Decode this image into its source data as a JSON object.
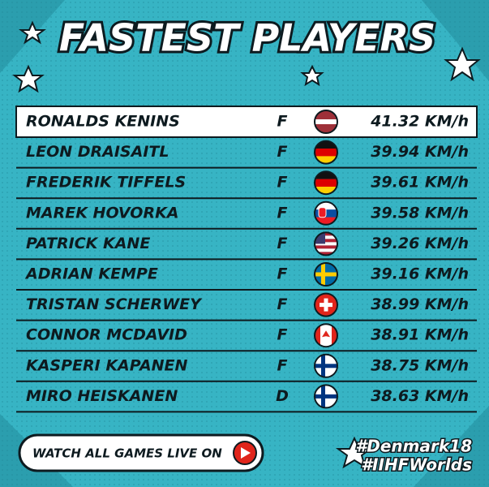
{
  "title": "FASTEST PLAYERS",
  "table": {
    "rows": [
      [
        "RONALDS KENINS",
        "F",
        "41.32 KM/h"
      ],
      [
        "LEON DRAISAITL",
        "F",
        "39.94 KM/h"
      ],
      [
        "FREDERIK TIFFELS",
        "F",
        "39.61 KM/h"
      ],
      [
        "MAREK HOVORKA",
        "F",
        "39.58 KM/h"
      ],
      [
        "PATRICK KANE",
        "F",
        "39.26 KM/h"
      ],
      [
        "ADRIAN KEMPE",
        "F",
        "39.16 KM/h"
      ],
      [
        "TRISTAN SCHERWEY",
        "F",
        "38.99 KM/h"
      ],
      [
        "CONNOR MCDAVID",
        "F",
        "38.91 KM/h"
      ],
      [
        "KASPERI KAPANEN",
        "F",
        "38.75 KM/h"
      ],
      [
        "MIRO HEISKANEN",
        "D",
        "38.63 KM/h"
      ]
    ]
  },
  "footer": {
    "button": "WATCH ALL GAMES LIVE ON",
    "hashtags": [
      "#Denmark18",
      "#IIHFWorlds"
    ]
  }
}
